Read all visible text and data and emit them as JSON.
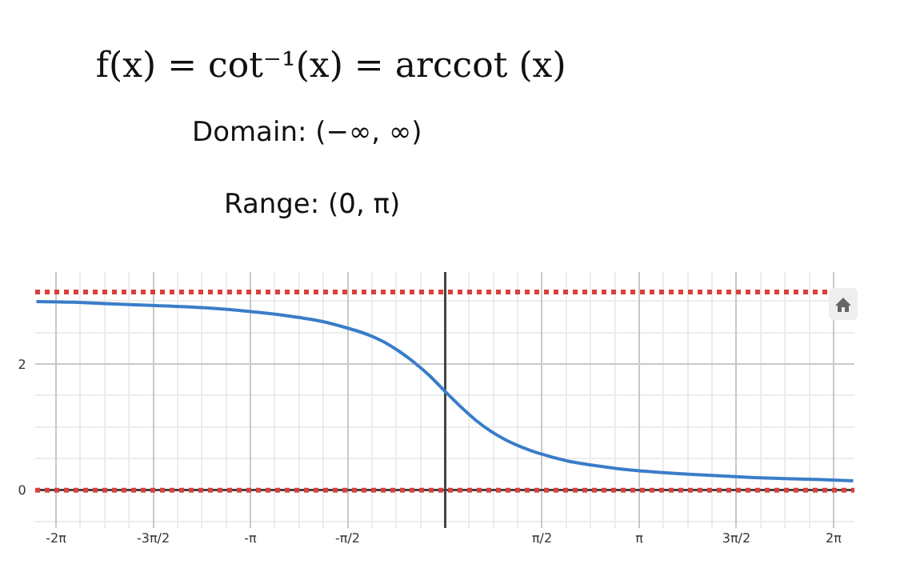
{
  "chart_data": {
    "type": "line",
    "title": "f(x) = cot⁻¹(x) = arccot (x)",
    "subtitle": "Domain: (−∞, ∞)",
    "annotations": [
      "Range: (0, π)"
    ],
    "x": [
      -6.6,
      -6,
      -5,
      -4,
      -3,
      -2.5,
      -2,
      -1.5,
      -1.25,
      -1,
      -0.75,
      -0.5,
      -0.25,
      0,
      0.25,
      0.5,
      0.75,
      1,
      1.25,
      1.5,
      2,
      2.5,
      3,
      4,
      5,
      6,
      6.6
    ],
    "series": [
      {
        "color": "#3a7dc9",
        "values": [
          2.99,
          2.98,
          2.94,
          2.9,
          2.82,
          2.76,
          2.68,
          2.55,
          2.47,
          2.36,
          2.21,
          2.03,
          1.82,
          1.57,
          1.33,
          1.11,
          0.93,
          0.79,
          0.68,
          0.59,
          0.46,
          0.38,
          0.32,
          0.25,
          0.2,
          0.17,
          0.15
        ]
      }
    ],
    "xlim": [
      -6.62,
      6.62
    ],
    "xticks": [
      {
        "value": -6.2832,
        "label": "-2π"
      },
      {
        "value": -4.7124,
        "label": "-3π/2"
      },
      {
        "value": -3.1416,
        "label": "-π"
      },
      {
        "value": -1.5708,
        "label": "-π/2"
      },
      {
        "value": 0,
        "label": null
      },
      {
        "value": 1.5708,
        "label": "π/2"
      },
      {
        "value": 3.1416,
        "label": "π"
      },
      {
        "value": 4.7124,
        "label": "3π/2"
      },
      {
        "value": 6.2832,
        "label": "2π"
      }
    ],
    "ylim": [
      -0.6,
      3.46
    ],
    "yticks": [
      0,
      2
    ],
    "ref_lines": [
      {
        "axis": "y",
        "value": 3.1416,
        "label": null,
        "color": "#d9403a",
        "line_style": "dotted"
      },
      {
        "axis": "y",
        "value": 0,
        "label": null,
        "color": "#d9403a",
        "line_style": "dotted"
      }
    ],
    "grid": true,
    "marker": "none",
    "line_style": "solid"
  }
}
